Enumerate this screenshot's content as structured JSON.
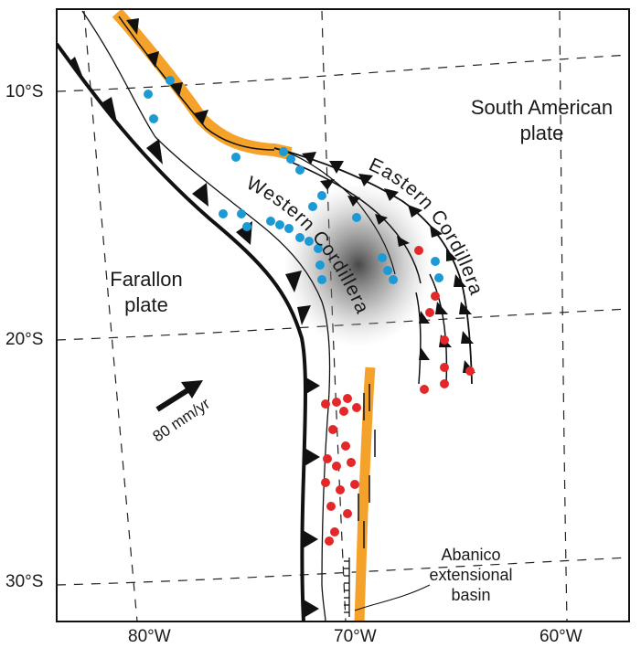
{
  "map": {
    "lat_labels": [
      "10°S",
      "20°S",
      "30°S"
    ],
    "lon_labels": [
      "80°W",
      "70°W",
      "60°W"
    ],
    "plates": {
      "farallon": [
        "Farallon",
        "plate"
      ],
      "south_american": [
        "South American",
        "plate"
      ]
    },
    "ranges": {
      "western": "Western Cordillera",
      "eastern": "Eastern Cordillera"
    },
    "velocity_label": "80 mm/yr",
    "basin_label": [
      "Abanico",
      "extensional",
      "basin"
    ],
    "colors": {
      "orange_belt": "#f5a22a",
      "blue_dots": "#1b9ad6",
      "red_dots": "#e3282a",
      "lines": "#111111",
      "grid": "#222222"
    }
  }
}
